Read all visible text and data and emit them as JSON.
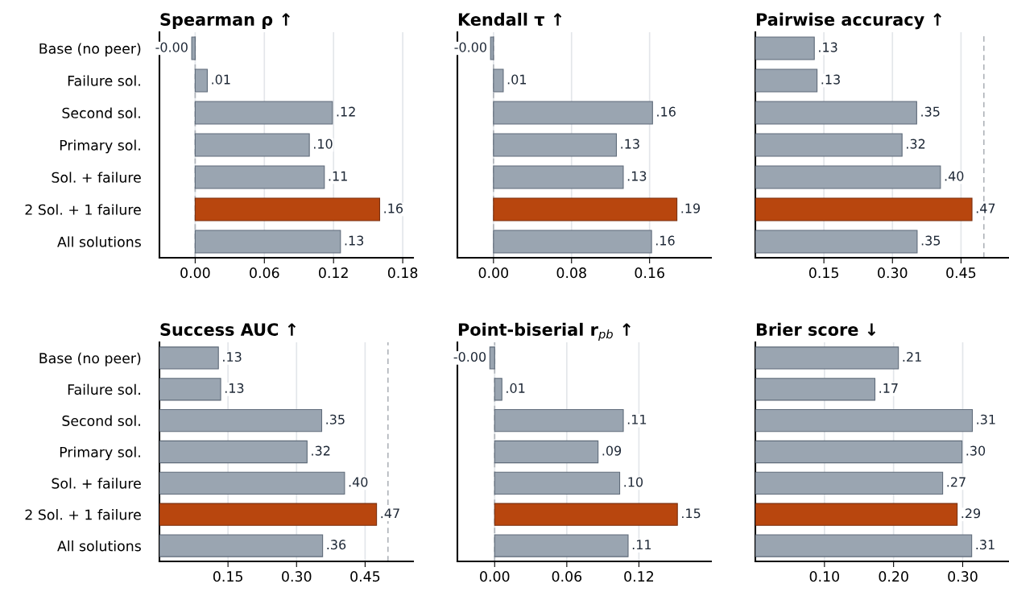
{
  "chart_data": [
    {
      "type": "bar",
      "orientation": "horizontal",
      "title": "Spearman ρ ↑",
      "categories": [
        "Base (no peer)",
        "Failure sol.",
        "Second sol.",
        "Primary sol.",
        "Sol. + failure",
        "2 Sol. + 1 failure",
        "All solutions"
      ],
      "values": [
        -0.003,
        0.0105,
        0.119,
        0.099,
        0.112,
        0.16,
        0.126
      ],
      "value_labels": [
        "-0.00",
        ".01",
        ".12",
        ".10",
        ".11",
        ".16",
        ".13"
      ],
      "colors": [
        "#9aa5b1",
        "#9aa5b1",
        "#9aa5b1",
        "#9aa5b1",
        "#9aa5b1",
        "#b8460e",
        "#9aa5b1"
      ],
      "xlim": [
        -0.031,
        0.189
      ],
      "xticks": [
        {
          "value": 0,
          "label": "0.00"
        },
        {
          "value": 0.06,
          "label": "0.06"
        },
        {
          "value": 0.12,
          "label": "0.12"
        },
        {
          "value": 0.18,
          "label": "0.18"
        }
      ],
      "grid": "x",
      "ref_lines": [
        {
          "axis": "x",
          "value": 0,
          "color": "#b0b4ba",
          "line_style": "dashed"
        }
      ]
    },
    {
      "type": "bar",
      "orientation": "horizontal",
      "title": "Kendall τ ↑",
      "categories": [
        null,
        null,
        null,
        null,
        null,
        null,
        null
      ],
      "values": [
        -0.003,
        0.01,
        0.163,
        0.126,
        0.133,
        0.188,
        0.162
      ],
      "value_labels": [
        "-0.00",
        ".01",
        ".16",
        ".13",
        ".13",
        ".19",
        ".16"
      ],
      "colors": [
        "#9aa5b1",
        "#9aa5b1",
        "#9aa5b1",
        "#9aa5b1",
        "#9aa5b1",
        "#b8460e",
        "#9aa5b1"
      ],
      "xlim": [
        -0.037,
        0.223
      ],
      "xticks": [
        {
          "value": 0,
          "label": "0.00"
        },
        {
          "value": 0.08,
          "label": "0.08"
        },
        {
          "value": 0.16,
          "label": "0.16"
        }
      ],
      "grid": "x",
      "ref_lines": [
        {
          "axis": "x",
          "value": 0,
          "color": "#b0b4ba",
          "line_style": "dashed"
        }
      ]
    },
    {
      "type": "bar",
      "orientation": "horizontal",
      "title": "Pairwise accuracy ↑",
      "categories": [
        null,
        null,
        null,
        null,
        null,
        null,
        null
      ],
      "values": [
        0.129,
        0.135,
        0.353,
        0.321,
        0.405,
        0.474,
        0.354
      ],
      "value_labels": [
        ".13",
        ".13",
        ".35",
        ".32",
        ".40",
        ".47",
        ".35"
      ],
      "colors": [
        "#9aa5b1",
        "#9aa5b1",
        "#9aa5b1",
        "#9aa5b1",
        "#9aa5b1",
        "#b8460e",
        "#9aa5b1"
      ],
      "xlim": [
        0,
        0.555
      ],
      "xticks": [
        0.15,
        {
          "value": 0.3,
          "label": "0.30"
        },
        0.45
      ],
      "grid": "x",
      "ref_lines": [
        {
          "axis": "x",
          "value": 0.5,
          "color": "#b0b4ba",
          "line_style": "dashed"
        }
      ]
    },
    {
      "type": "bar",
      "orientation": "horizontal",
      "title": "Success AUC ↑",
      "categories": [
        "Base (no peer)",
        "Failure sol.",
        "Second sol.",
        "Primary sol.",
        "Sol. + failure",
        "2 Sol. + 1 failure",
        "All solutions"
      ],
      "values": [
        0.129,
        0.134,
        0.355,
        0.323,
        0.405,
        0.475,
        0.357
      ],
      "value_labels": [
        ".13",
        ".13",
        ".35",
        ".32",
        ".40",
        ".47",
        ".36"
      ],
      "colors": [
        "#9aa5b1",
        "#9aa5b1",
        "#9aa5b1",
        "#9aa5b1",
        "#9aa5b1",
        "#b8460e",
        "#9aa5b1"
      ],
      "xlim": [
        0,
        0.555
      ],
      "xticks": [
        0.15,
        {
          "value": 0.3,
          "label": "0.30"
        },
        0.45
      ],
      "grid": "x",
      "ref_lines": [
        {
          "axis": "x",
          "value": 0.5,
          "color": "#b0b4ba",
          "line_style": "dashed"
        }
      ]
    },
    {
      "type": "bar",
      "orientation": "horizontal",
      "title": "Point-biserial r$_{pb}$ ↑",
      "categories": [
        null,
        null,
        null,
        null,
        null,
        null,
        null
      ],
      "values": [
        -0.004,
        0.006,
        0.107,
        0.086,
        0.104,
        0.152,
        0.111
      ],
      "value_labels": [
        "-0.00",
        ".01",
        ".11",
        ".09",
        ".10",
        ".15",
        ".11"
      ],
      "colors": [
        "#9aa5b1",
        "#9aa5b1",
        "#9aa5b1",
        "#9aa5b1",
        "#9aa5b1",
        "#b8460e",
        "#9aa5b1"
      ],
      "xlim": [
        -0.031,
        0.18
      ],
      "xticks": [
        {
          "value": 0,
          "label": "0.00"
        },
        0.06,
        0.12
      ],
      "grid": "x",
      "ref_lines": [
        {
          "axis": "x",
          "value": 0,
          "color": "#b0b4ba",
          "line_style": "dashed"
        }
      ]
    },
    {
      "type": "bar",
      "orientation": "horizontal",
      "title": "Brier score ↓",
      "categories": [
        null,
        null,
        null,
        null,
        null,
        null,
        null
      ],
      "values": [
        0.207,
        0.173,
        0.314,
        0.299,
        0.271,
        0.292,
        0.313
      ],
      "value_labels": [
        ".21",
        ".17",
        ".31",
        ".30",
        ".27",
        ".29",
        ".31"
      ],
      "colors": [
        "#9aa5b1",
        "#9aa5b1",
        "#9aa5b1",
        "#9aa5b1",
        "#9aa5b1",
        "#b8460e",
        "#9aa5b1"
      ],
      "xlim": [
        0,
        0.367
      ],
      "xticks": [
        {
          "value": 0.1,
          "label": "0.10"
        },
        {
          "value": 0.2,
          "label": "0.20"
        },
        {
          "value": 0.3,
          "label": "0.30"
        }
      ],
      "grid": "x"
    }
  ]
}
